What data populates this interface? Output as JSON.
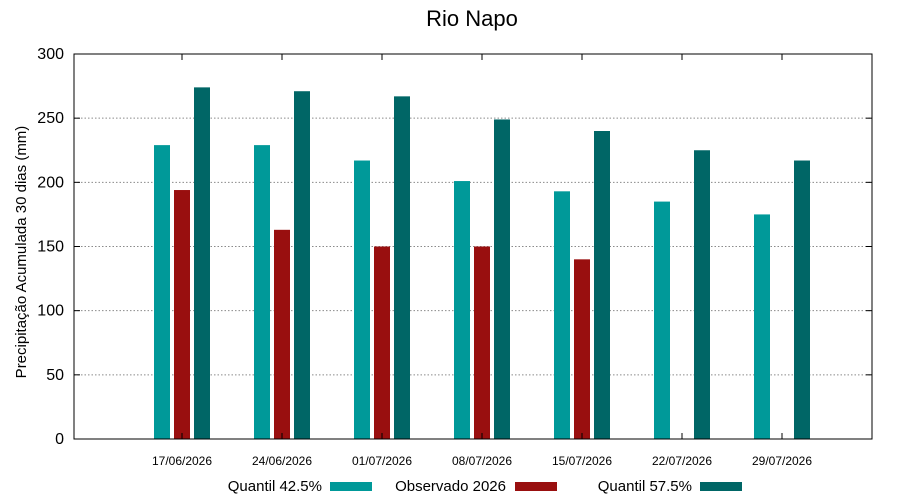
{
  "chart_data": {
    "type": "bar",
    "title": "Rio Napo",
    "xlabel": "",
    "ylabel": "Precipitação Acumulada 30 dias (mm)",
    "ylim": [
      0,
      300
    ],
    "yticks": [
      0,
      50,
      100,
      150,
      200,
      250,
      300
    ],
    "grid": "horizontal dotted",
    "legend": "bottom",
    "categories": [
      "17/06/2026",
      "24/06/2026",
      "01/07/2026",
      "08/07/2026",
      "15/07/2026",
      "22/07/2026",
      "29/07/2026"
    ],
    "series": [
      {
        "name": "Quantil 42.5%",
        "color": "#009999",
        "values": [
          229,
          229,
          217,
          201,
          193,
          185,
          175
        ]
      },
      {
        "name": "Observado 2026",
        "color": "#990f0f",
        "values": [
          194,
          163,
          150,
          150,
          140,
          null,
          null
        ]
      },
      {
        "name": "Quantil 57.5%",
        "color": "#006666",
        "values": [
          274,
          271,
          267,
          249,
          240,
          225,
          217
        ]
      }
    ]
  }
}
